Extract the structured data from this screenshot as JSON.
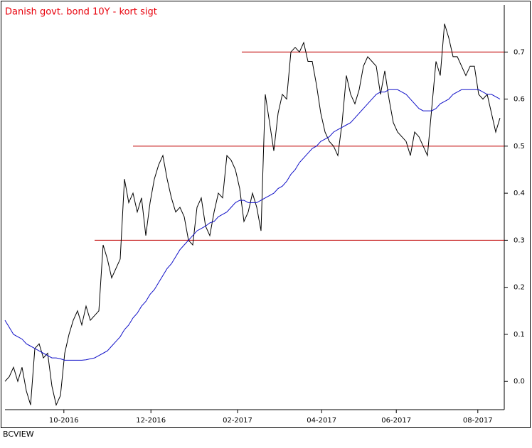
{
  "chart_data": {
    "type": "line",
    "title": "Danish govt. bond 10Y - kort sigt",
    "footer": "BCVIEW",
    "title_color": "#e8000b",
    "xlim": [
      0,
      117
    ],
    "xticks": [
      {
        "value": 13.8,
        "label": "10-2016"
      },
      {
        "value": 34.2,
        "label": "12-2016"
      },
      {
        "value": 54.5,
        "label": "02-2017"
      },
      {
        "value": 74.2,
        "label": "04-2017"
      },
      {
        "value": 91.7,
        "label": "06-2017"
      },
      {
        "value": 110.8,
        "label": "08-2017"
      }
    ],
    "ylim": [
      -0.06,
      0.8
    ],
    "yticks": [
      {
        "value": 0,
        "label": "0.0"
      },
      0.1,
      0.2,
      0.3,
      0.4,
      0.5,
      0.6,
      0.7
    ],
    "hlines": [
      {
        "value": 0.3,
        "from": 21
      },
      {
        "value": 0.5,
        "from": 30
      },
      {
        "value": 0.7,
        "from": 55.5
      }
    ],
    "hline_color": "#c00000",
    "series": [
      {
        "color": "#000000",
        "values": [
          0.0,
          0.01,
          0.03,
          0.0,
          0.03,
          -0.02,
          -0.05,
          0.07,
          0.08,
          0.05,
          0.06,
          -0.01,
          -0.05,
          -0.03,
          0.06,
          0.1,
          0.13,
          0.15,
          0.12,
          0.16,
          0.13,
          0.14,
          0.15,
          0.29,
          0.26,
          0.22,
          0.24,
          0.26,
          0.43,
          0.38,
          0.4,
          0.36,
          0.39,
          0.31,
          0.38,
          0.43,
          0.46,
          0.48,
          0.43,
          0.39,
          0.36,
          0.37,
          0.35,
          0.3,
          0.29,
          0.37,
          0.39,
          0.33,
          0.31,
          0.36,
          0.4,
          0.39,
          0.48,
          0.47,
          0.45,
          0.41,
          0.34,
          0.36,
          0.4,
          0.37,
          0.32,
          0.61,
          0.55,
          0.49,
          0.57,
          0.61,
          0.6,
          0.7,
          0.71,
          0.7,
          0.72,
          0.68,
          0.68,
          0.63,
          0.57,
          0.53,
          0.51,
          0.5,
          0.48,
          0.55,
          0.65,
          0.61,
          0.59,
          0.62,
          0.67,
          0.69,
          0.68,
          0.67,
          0.61,
          0.66,
          0.6,
          0.55,
          0.53,
          0.52,
          0.51,
          0.48,
          0.53,
          0.52,
          0.5,
          0.48,
          0.58,
          0.68,
          0.65,
          0.76,
          0.73,
          0.69,
          0.69,
          0.67,
          0.65,
          0.67,
          0.67,
          0.61,
          0.6,
          0.61,
          0.57,
          0.53,
          0.56
        ]
      },
      {
        "color": "#1010c8",
        "values": [
          0.13,
          0.115,
          0.1,
          0.095,
          0.09,
          0.08,
          0.075,
          0.07,
          0.065,
          0.06,
          0.055,
          0.05,
          0.05,
          0.048,
          0.045,
          0.045,
          0.045,
          0.045,
          0.045,
          0.046,
          0.048,
          0.05,
          0.055,
          0.06,
          0.065,
          0.075,
          0.085,
          0.095,
          0.11,
          0.12,
          0.135,
          0.145,
          0.16,
          0.17,
          0.185,
          0.195,
          0.21,
          0.225,
          0.24,
          0.25,
          0.265,
          0.28,
          0.29,
          0.3,
          0.31,
          0.32,
          0.325,
          0.33,
          0.337,
          0.34,
          0.35,
          0.355,
          0.36,
          0.37,
          0.38,
          0.385,
          0.385,
          0.38,
          0.38,
          0.38,
          0.385,
          0.39,
          0.395,
          0.4,
          0.41,
          0.415,
          0.425,
          0.44,
          0.45,
          0.465,
          0.475,
          0.485,
          0.495,
          0.5,
          0.51,
          0.515,
          0.52,
          0.53,
          0.535,
          0.54,
          0.545,
          0.55,
          0.56,
          0.57,
          0.58,
          0.59,
          0.6,
          0.61,
          0.615,
          0.615,
          0.62,
          0.62,
          0.62,
          0.615,
          0.61,
          0.6,
          0.59,
          0.58,
          0.575,
          0.575,
          0.575,
          0.58,
          0.59,
          0.595,
          0.6,
          0.61,
          0.615,
          0.62,
          0.62,
          0.62,
          0.62,
          0.62,
          0.615,
          0.61,
          0.61,
          0.605,
          0.6
        ]
      }
    ]
  }
}
